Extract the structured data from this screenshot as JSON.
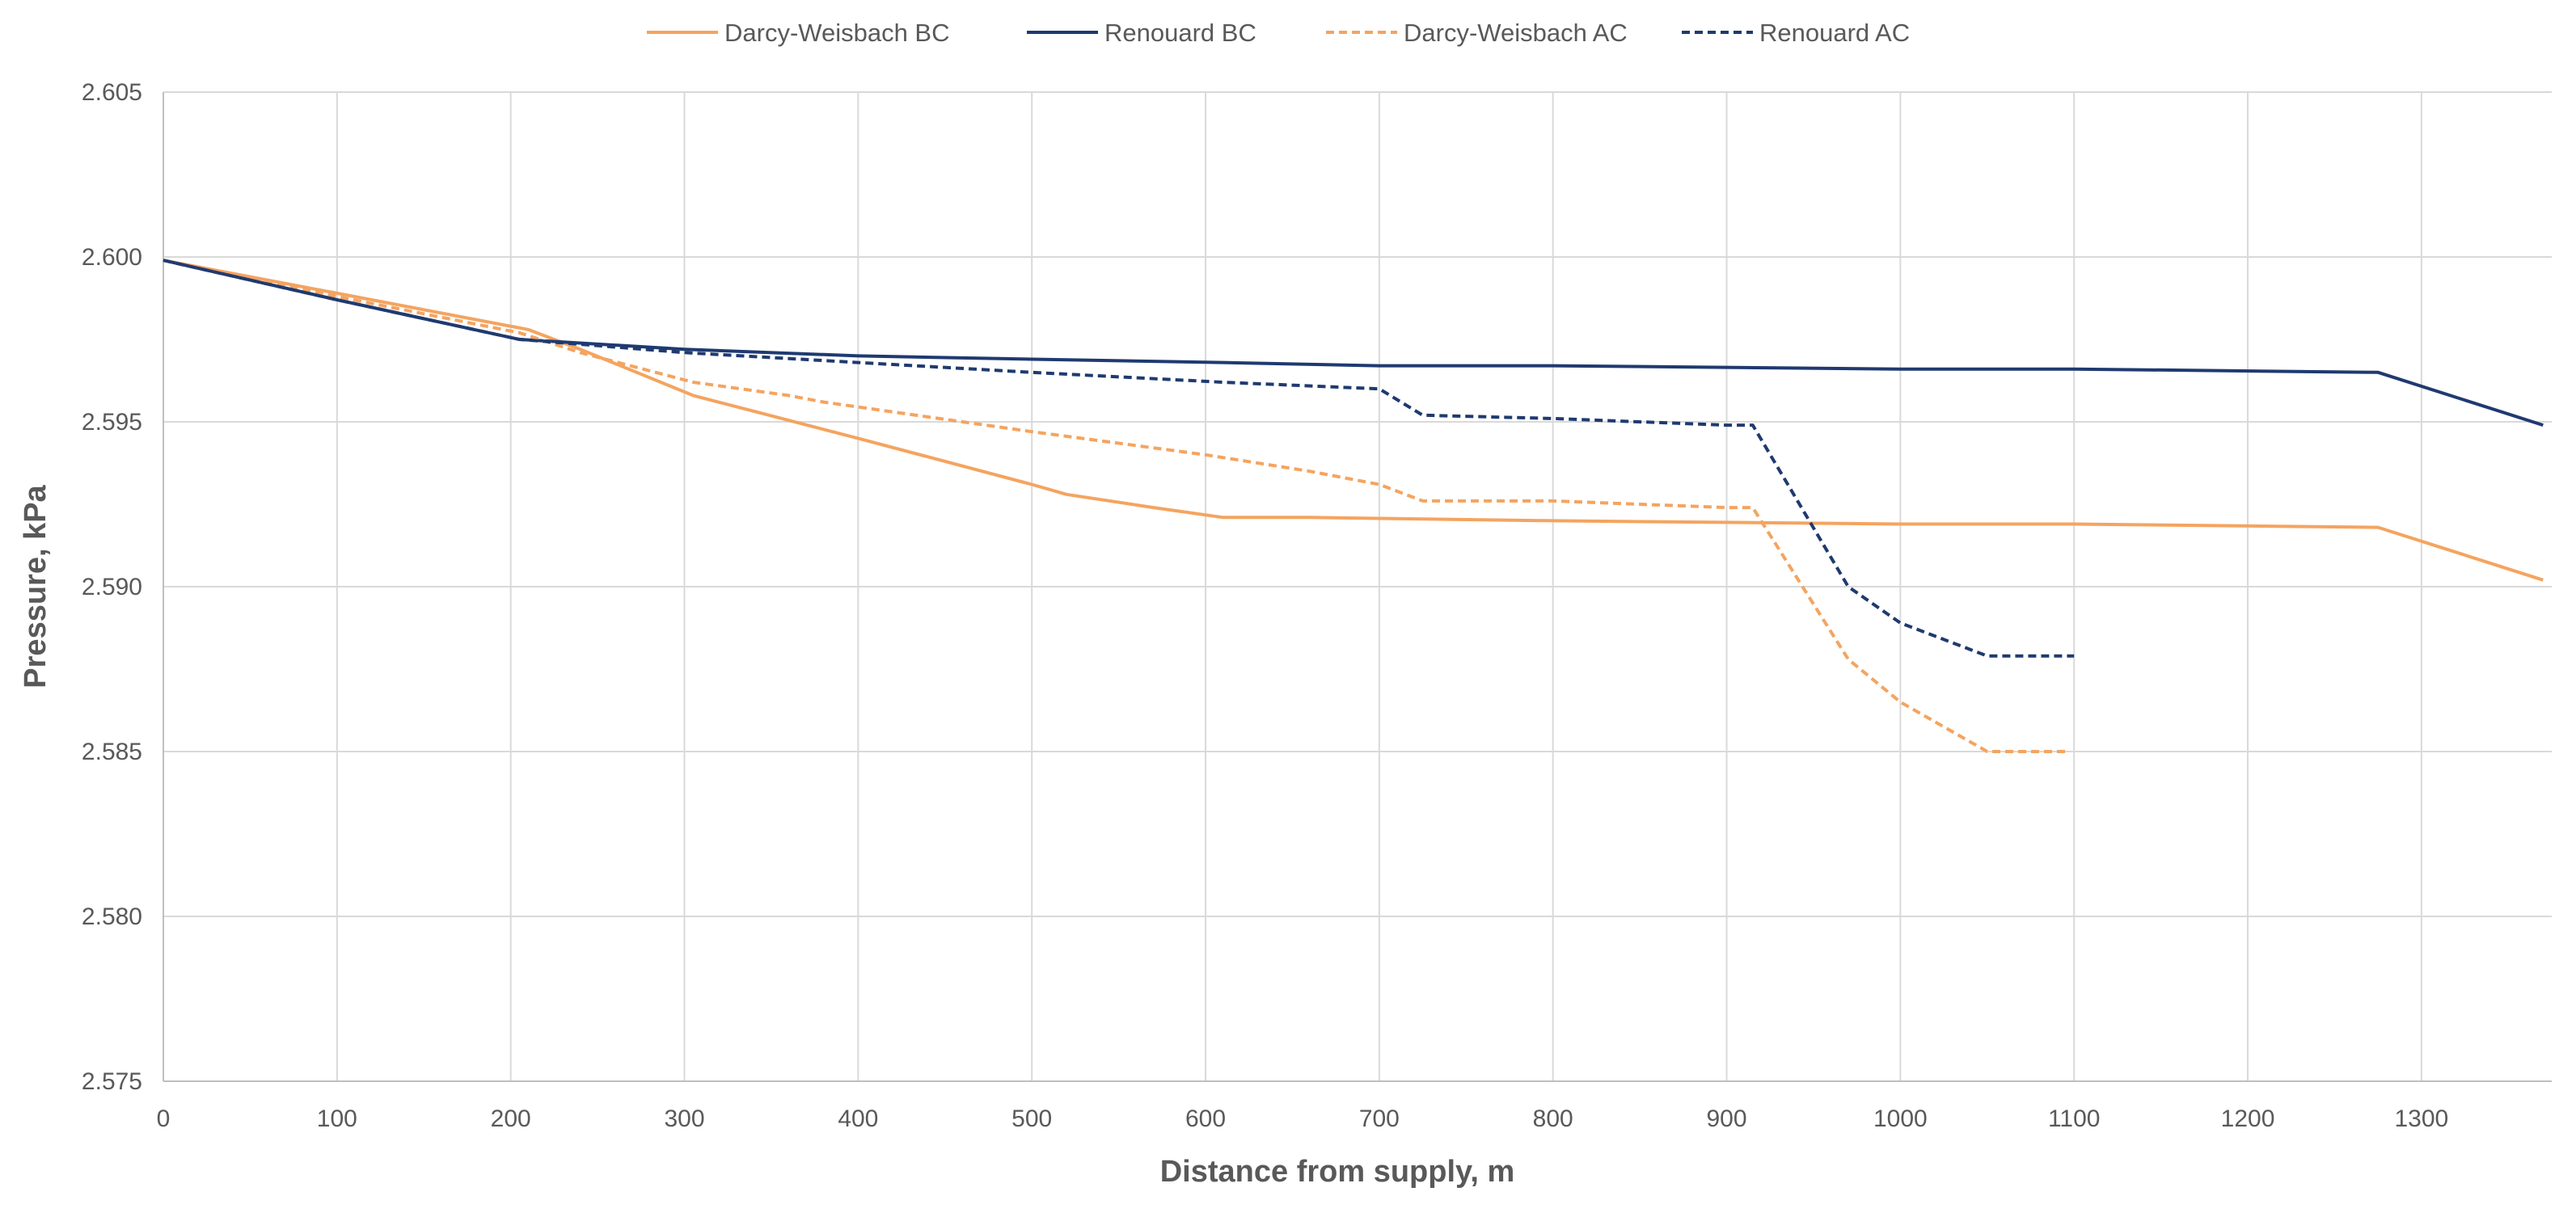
{
  "chart_data": {
    "type": "line",
    "title": "",
    "xlabel": "Distance from supply, m",
    "ylabel": "Pressure, kPa",
    "xlim": [
      0,
      1375
    ],
    "ylim": [
      2.575,
      2.605
    ],
    "x_ticks": [
      0,
      100,
      200,
      300,
      400,
      500,
      600,
      700,
      800,
      900,
      1000,
      1100,
      1200,
      1300
    ],
    "x_tick_labels": [
      "0",
      "100",
      "200",
      "300",
      "400",
      "500",
      "600",
      "700",
      "800",
      "900",
      "1000",
      "1100",
      "1200",
      "1300"
    ],
    "y_ticks": [
      2.575,
      2.58,
      2.585,
      2.59,
      2.595,
      2.6,
      2.605
    ],
    "y_tick_labels": [
      "2.575",
      "2.580",
      "2.585",
      "2.590",
      "2.595",
      "2.600",
      "2.605"
    ],
    "grid": true,
    "legend_position": "top-center",
    "series": [
      {
        "name": "Darcy-Weisbach BC",
        "color": "#F4A460",
        "dash": "solid",
        "points": [
          [
            0,
            2.5999
          ],
          [
            100,
            2.5989
          ],
          [
            210,
            2.5978
          ],
          [
            240,
            2.5972
          ],
          [
            305,
            2.5958
          ],
          [
            400,
            2.5945
          ],
          [
            500,
            2.5931
          ],
          [
            520,
            2.5928
          ],
          [
            570,
            2.5924
          ],
          [
            610,
            2.5921
          ],
          [
            660,
            2.5921
          ],
          [
            800,
            2.592
          ],
          [
            1000,
            2.5919
          ],
          [
            1100,
            2.5919
          ],
          [
            1275,
            2.5918
          ],
          [
            1370,
            2.5902
          ]
        ]
      },
      {
        "name": "Renouard BC",
        "color": "#1F3A70",
        "dash": "solid",
        "points": [
          [
            0,
            2.5999
          ],
          [
            100,
            2.5987
          ],
          [
            205,
            2.5975
          ],
          [
            300,
            2.5972
          ],
          [
            400,
            2.597
          ],
          [
            500,
            2.5969
          ],
          [
            610,
            2.5968
          ],
          [
            700,
            2.5967
          ],
          [
            800,
            2.5967
          ],
          [
            1000,
            2.5966
          ],
          [
            1100,
            2.5966
          ],
          [
            1275,
            2.5965
          ],
          [
            1370,
            2.5949
          ]
        ]
      },
      {
        "name": "Darcy-Weisbach AC",
        "color": "#F4A460",
        "dash": "dashed",
        "points": [
          [
            0,
            2.5999
          ],
          [
            100,
            2.5988
          ],
          [
            205,
            2.5977
          ],
          [
            240,
            2.5971
          ],
          [
            305,
            2.5962
          ],
          [
            360,
            2.5958
          ],
          [
            380,
            2.5956
          ],
          [
            500,
            2.5947
          ],
          [
            600,
            2.594
          ],
          [
            660,
            2.5935
          ],
          [
            700,
            2.5931
          ],
          [
            725,
            2.5926
          ],
          [
            800,
            2.5926
          ],
          [
            900,
            2.5924
          ],
          [
            915,
            2.5924
          ],
          [
            970,
            2.5878
          ],
          [
            1000,
            2.5865
          ],
          [
            1050,
            2.585
          ],
          [
            1095,
            2.585
          ]
        ]
      },
      {
        "name": "Renouard AC",
        "color": "#1F3A70",
        "dash": "dashed",
        "points": [
          [
            0,
            2.5999
          ],
          [
            100,
            2.5987
          ],
          [
            205,
            2.5975
          ],
          [
            300,
            2.5971
          ],
          [
            400,
            2.5968
          ],
          [
            500,
            2.5965
          ],
          [
            610,
            2.5962
          ],
          [
            700,
            2.596
          ],
          [
            725,
            2.5952
          ],
          [
            800,
            2.5951
          ],
          [
            900,
            2.5949
          ],
          [
            915,
            2.5949
          ],
          [
            970,
            2.59
          ],
          [
            1000,
            2.5889
          ],
          [
            1050,
            2.5879
          ],
          [
            1100,
            2.5879
          ]
        ]
      }
    ]
  }
}
